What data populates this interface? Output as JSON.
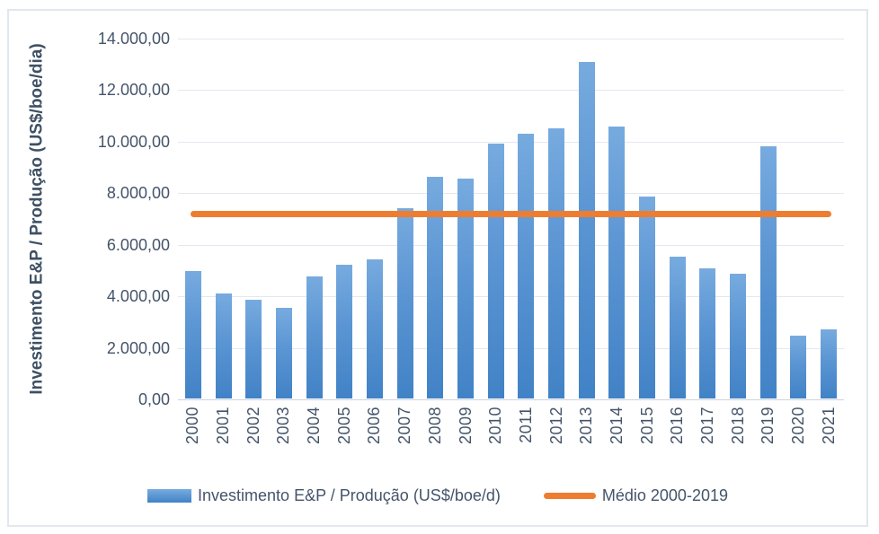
{
  "chart": {
    "y_axis_title": "Investimento E&P / Produção (US$/boe/dia)"
  },
  "chart_data": {
    "type": "bar",
    "title": "",
    "categories": [
      "2000",
      "2001",
      "2002",
      "2003",
      "2004",
      "2005",
      "2006",
      "2007",
      "2008",
      "2009",
      "2010",
      "2011",
      "2012",
      "2013",
      "2014",
      "2015",
      "2016",
      "2017",
      "2018",
      "2019",
      "2020",
      "2021"
    ],
    "series": [
      {
        "name": "Investimento E&P / Produção (US$/boe/d)",
        "type": "bar",
        "values": [
          4950,
          4070,
          3820,
          3510,
          4720,
          5180,
          5410,
          7400,
          8600,
          8550,
          9900,
          10280,
          10480,
          13050,
          10550,
          7850,
          5520,
          5060,
          4840,
          9800,
          2450,
          2680
        ]
      },
      {
        "name": "Médio 2000-2019",
        "type": "constant-line",
        "value": 7177
      }
    ],
    "xlabel": "",
    "ylabel": "Investimento E&P / Produção (US$/boe/dia)",
    "ylim": [
      0,
      14000
    ],
    "ytick_step": 2000,
    "ytick_labels_top_to_bottom": [
      "14.000,00",
      "12.000,00",
      "10.000,00",
      "8.000,00",
      "6.000,00",
      "4.000,00",
      "2.000,00",
      "0,00"
    ],
    "x_tick_rotation": 90,
    "grid": true,
    "legend_position": "bottom",
    "colors": {
      "bar_gradient_top": "#77abdf",
      "bar_gradient_bottom": "#4182c6",
      "average_line": "#ed7d31",
      "text": "#44546a",
      "gridline": "#e3e8f0"
    }
  }
}
